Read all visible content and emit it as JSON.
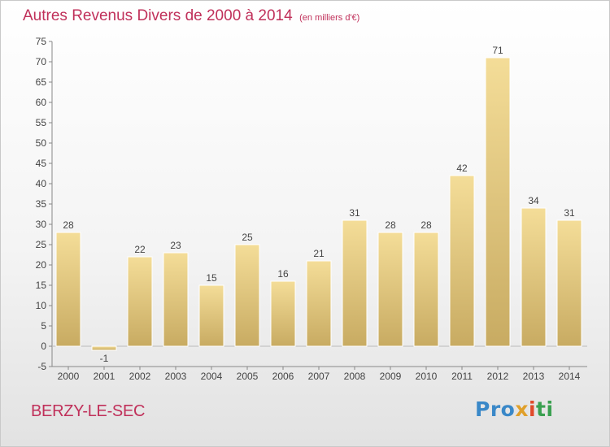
{
  "title": "Autres Revenus Divers de 2000 à 2014",
  "unit": "(en milliers d'€)",
  "commune": "BERZY-LE-SEC",
  "logo": {
    "p1": "Pro",
    "p2": "x",
    "p3": "i",
    "p4": "ti"
  },
  "colors": {
    "title": "#c0305a",
    "bar_top": "#f4dd98",
    "bar_bottom": "#c8ab62"
  },
  "chart_data": {
    "type": "bar",
    "categories": [
      "2000",
      "2001",
      "2002",
      "2003",
      "2004",
      "2005",
      "2006",
      "2007",
      "2008",
      "2009",
      "2010",
      "2011",
      "2012",
      "2013",
      "2014"
    ],
    "values": [
      28,
      -1,
      22,
      23,
      15,
      25,
      16,
      21,
      31,
      28,
      28,
      42,
      71,
      34,
      31
    ],
    "ylim": [
      -5,
      75
    ],
    "yticks": [
      -5,
      0,
      5,
      10,
      15,
      20,
      25,
      30,
      35,
      40,
      45,
      50,
      55,
      60,
      65,
      70,
      75
    ],
    "grid": false,
    "xlabel": "",
    "ylabel": ""
  }
}
